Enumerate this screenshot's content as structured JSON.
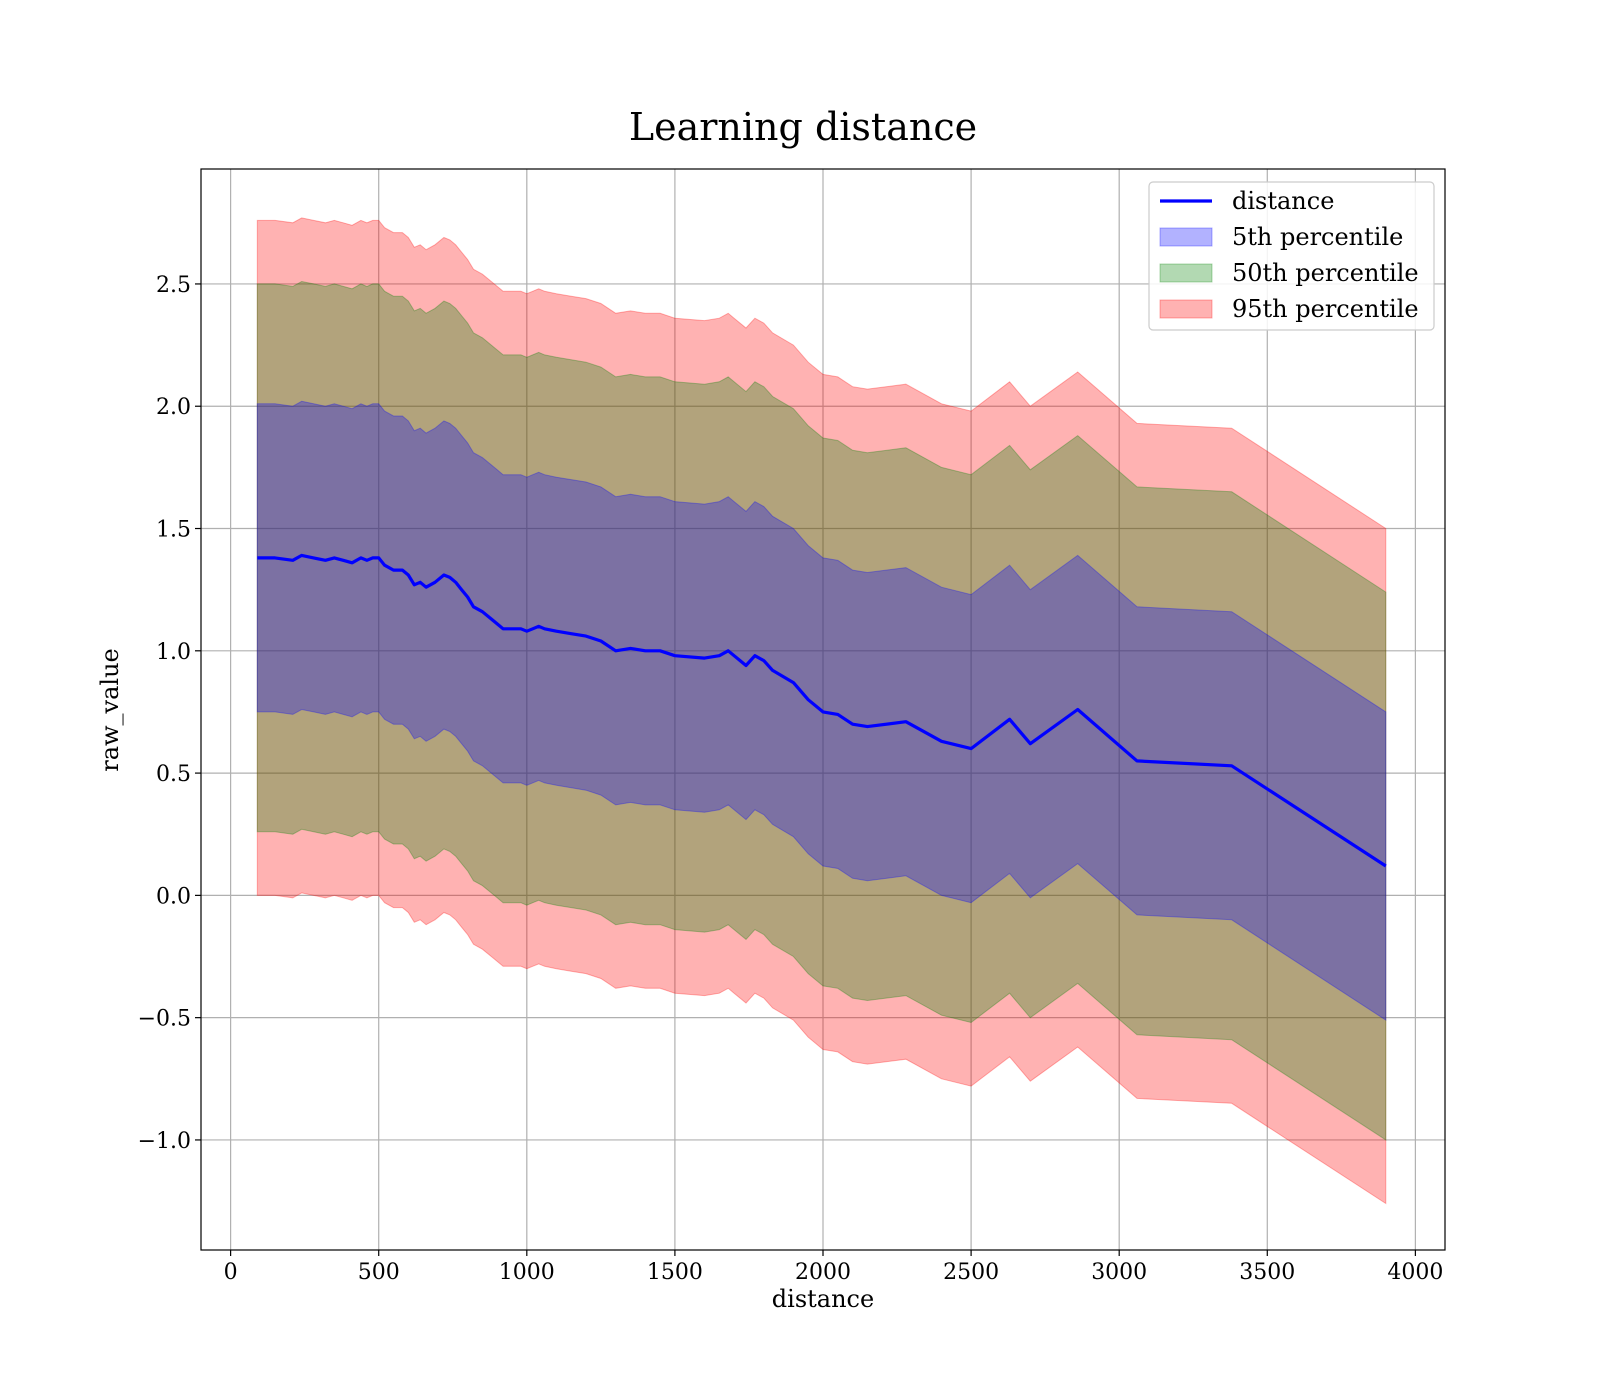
{
  "chart_data": {
    "type": "line",
    "title": "Learning distance",
    "xlabel": "distance",
    "ylabel": "raw_value",
    "xlim": [
      -100,
      4100
    ],
    "ylim": [
      -1.45,
      2.97
    ],
    "grid": true,
    "legend_position": "top-right",
    "x_ticks": [
      0,
      500,
      1000,
      1500,
      2000,
      2500,
      3000,
      3500,
      4000
    ],
    "x_tick_labels": [
      "0",
      "500",
      "1000",
      "1500",
      "2000",
      "2500",
      "3000",
      "3500",
      "4000"
    ],
    "y_ticks": [
      -1.0,
      -0.5,
      0.0,
      0.5,
      1.0,
      1.5,
      2.0,
      2.5
    ],
    "y_tick_labels": [
      "−1.0",
      "−0.5",
      "0.0",
      "0.5",
      "1.0",
      "1.5",
      "2.0",
      "2.5"
    ],
    "x": [
      90,
      150,
      210,
      240,
      280,
      320,
      350,
      380,
      410,
      440,
      460,
      480,
      500,
      520,
      550,
      580,
      600,
      620,
      640,
      660,
      690,
      720,
      740,
      760,
      780,
      800,
      820,
      850,
      880,
      900,
      920,
      950,
      980,
      1000,
      1020,
      1040,
      1060,
      1100,
      1150,
      1200,
      1250,
      1300,
      1350,
      1400,
      1450,
      1500,
      1600,
      1650,
      1680,
      1700,
      1740,
      1770,
      1800,
      1830,
      1900,
      1950,
      2000,
      2050,
      2100,
      2150,
      2280,
      2400,
      2500,
      2630,
      2700,
      2860,
      3060,
      3380,
      3900
    ],
    "series": [
      {
        "name": "distance",
        "color": "#0000ff",
        "y": [
          1.38,
          1.38,
          1.37,
          1.39,
          1.38,
          1.37,
          1.38,
          1.37,
          1.36,
          1.38,
          1.37,
          1.38,
          1.38,
          1.35,
          1.33,
          1.33,
          1.31,
          1.27,
          1.28,
          1.26,
          1.28,
          1.31,
          1.3,
          1.28,
          1.25,
          1.22,
          1.18,
          1.16,
          1.13,
          1.11,
          1.09,
          1.09,
          1.09,
          1.08,
          1.09,
          1.1,
          1.09,
          1.08,
          1.07,
          1.06,
          1.04,
          1.0,
          1.01,
          1.0,
          1.0,
          0.98,
          0.97,
          0.98,
          1.0,
          0.98,
          0.94,
          0.98,
          0.96,
          0.92,
          0.87,
          0.8,
          0.75,
          0.74,
          0.7,
          0.69,
          0.71,
          0.63,
          0.6,
          0.72,
          0.62,
          0.76,
          0.55,
          0.53,
          0.12
        ]
      }
    ],
    "bands": [
      {
        "name": "5th percentile",
        "color": "#0000ff",
        "half_width": 0.63
      },
      {
        "name": "50th percentile",
        "color": "#008000",
        "half_width": 1.12
      },
      {
        "name": "95th percentile",
        "color": "#ff0000",
        "half_width": 1.38
      }
    ]
  }
}
